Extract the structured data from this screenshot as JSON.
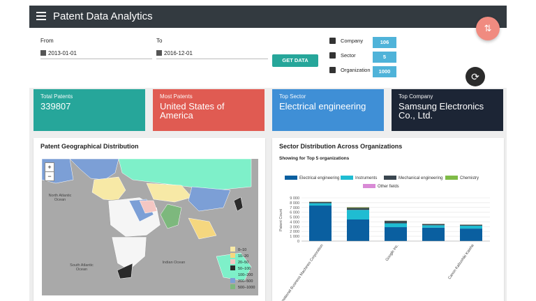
{
  "header": {
    "title": "Patent Data Analytics",
    "fab_icon": "swap-vert-icon"
  },
  "filters": {
    "from_label": "From",
    "from_value": "2013-01-01",
    "to_label": "To",
    "to_value": "2016-12-01",
    "get_button": "GET DATA",
    "counts": [
      {
        "label": "Company",
        "value": "106",
        "icon": "bar-chart-icon"
      },
      {
        "label": "Sector",
        "value": "5",
        "icon": "card-icon"
      },
      {
        "label": "Organization",
        "value": "1000",
        "icon": "person-box-icon"
      }
    ]
  },
  "cards": [
    {
      "title": "Total Patents",
      "value": "339807",
      "color": "#26a69a"
    },
    {
      "title": "Most Patents",
      "value": "United States of America",
      "color": "#e05b52"
    },
    {
      "title": "Top Sector",
      "value": "Electrical engineering",
      "color": "#3f8fd6"
    },
    {
      "title": "Top Company",
      "value": "Samsung Electronics Co., Ltd.",
      "color": "#1c2535"
    }
  ],
  "map_panel": {
    "title": "Patent Geographical Distribution",
    "zoom_in": "+",
    "zoom_out": "−",
    "oceans": [
      {
        "label": "North Atlantic Ocean"
      },
      {
        "label": "South Atlantic Ocean"
      },
      {
        "label": "Indian Ocean"
      }
    ],
    "legend": [
      {
        "label": "0–10",
        "color": "#f7e9a6"
      },
      {
        "label": "10–20",
        "color": "#f5d77f"
      },
      {
        "label": "20–50",
        "color": "#f4c7c3"
      },
      {
        "label": "50–100",
        "color": "#2b2b2b"
      },
      {
        "label": "100–200",
        "color": "#7ef0c9"
      },
      {
        "label": "200–500",
        "color": "#7c9fd6"
      },
      {
        "label": "500–1000",
        "color": "#7db87d"
      }
    ]
  },
  "chart_panel": {
    "title": "Sector Distribution Across Organizations",
    "subtitle": "Showing for Top 5 organizations"
  },
  "chart_data": {
    "type": "bar",
    "stacked": true,
    "ylabel": "Patent Count",
    "ylim": [
      0,
      9000
    ],
    "yticks": [
      "0",
      "1 000",
      "2 000",
      "3 000",
      "4 000",
      "5 000",
      "6 000",
      "7 000",
      "8 000",
      "9 000"
    ],
    "categories": [
      "International Business Machines Corporation",
      "",
      "Google Inc.",
      "",
      "Canon Kabushiki Kaisha"
    ],
    "series": [
      {
        "name": "Electrical engineering",
        "color": "#0a5fa0",
        "values": [
          7400,
          4500,
          2900,
          2800,
          2600
        ]
      },
      {
        "name": "Instruments",
        "color": "#1fbcd2",
        "values": [
          500,
          2000,
          800,
          500,
          600
        ]
      },
      {
        "name": "Mechanical engineering",
        "color": "#3a4650",
        "values": [
          250,
          400,
          500,
          250,
          200
        ]
      },
      {
        "name": "Chemistry",
        "color": "#7fbb47",
        "values": [
          50,
          150,
          50,
          30,
          30
        ]
      },
      {
        "name": "Other fields",
        "color": "#d98ad6",
        "values": [
          20,
          50,
          20,
          20,
          20
        ]
      }
    ]
  }
}
